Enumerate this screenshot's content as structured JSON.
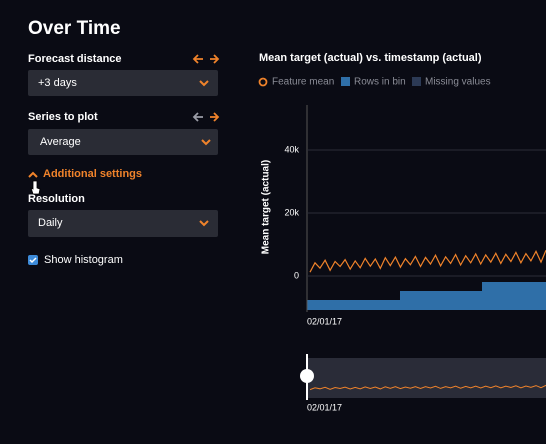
{
  "panel": {
    "title": "Over Time",
    "forecast_distance": {
      "label": "Forecast distance",
      "value": "+3 days"
    },
    "series_to_plot": {
      "label": "Series to plot",
      "value": "Average"
    },
    "additional_settings": "Additional settings",
    "resolution": {
      "label": "Resolution",
      "value": "Daily"
    },
    "show_histogram": "Show histogram"
  },
  "chart_data": {
    "type": "line",
    "title": "Mean target (actual) vs. timestamp (actual)",
    "ylabel": "Mean target (actual)",
    "legend": [
      "Feature mean",
      "Rows in bin",
      "Missing values"
    ],
    "x_start_label": "02/01/17",
    "ylim": [
      -10800,
      54300
    ],
    "yticks": [
      {
        "value": 0,
        "label": "0"
      },
      {
        "value": 20000,
        "label": "20k"
      },
      {
        "value": 40000,
        "label": "40k"
      }
    ],
    "grid": true,
    "series": [
      {
        "name": "Feature mean",
        "color": "#f0832b",
        "values": [
          1200,
          4200,
          2500,
          5000,
          1800,
          4600,
          3000,
          5200,
          2200,
          4800,
          2600,
          5600,
          3100,
          5400,
          2400,
          5800,
          3300,
          6000,
          2800,
          5500,
          3600,
          6200,
          3000,
          5900,
          3800,
          6600,
          3200,
          6100,
          4000,
          6800,
          3500,
          6400,
          4200,
          7000,
          3800,
          6700,
          4400,
          7200,
          4000,
          6900,
          4600,
          7500,
          4200,
          7100,
          4800,
          7800,
          4400,
          8200
        ]
      }
    ]
  }
}
